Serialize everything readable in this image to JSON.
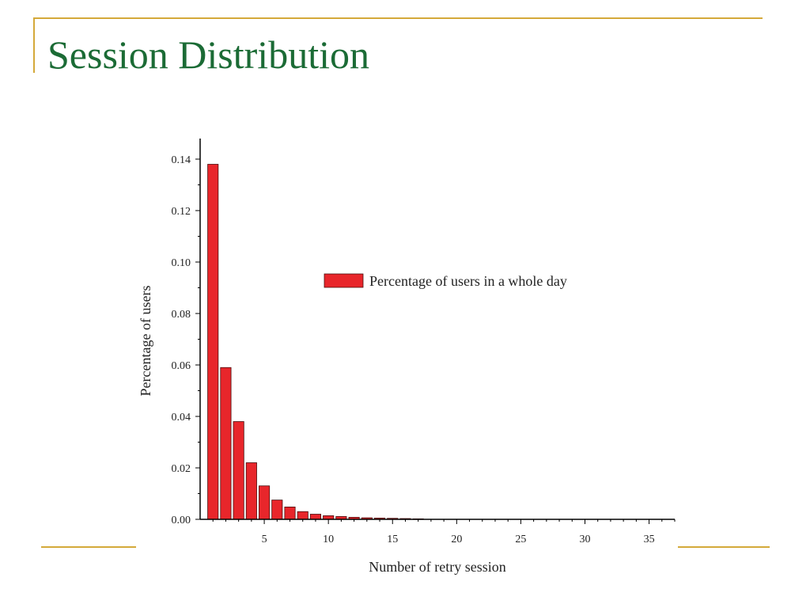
{
  "slide": {
    "title": "Session Distribution"
  },
  "colors": {
    "accent_line": "#d4a93a",
    "title": "#1b6b35",
    "bar_fill": "#e8262b",
    "bar_stroke": "#4a0d0d"
  },
  "chart_data": {
    "type": "bar",
    "x": [
      1,
      2,
      3,
      4,
      5,
      6,
      7,
      8,
      9,
      10,
      11,
      12,
      13,
      14,
      15,
      16,
      17
    ],
    "series": [
      {
        "name": "Percentage of users in a whole day",
        "values": [
          0.138,
          0.059,
          0.038,
          0.022,
          0.013,
          0.0075,
          0.0048,
          0.003,
          0.002,
          0.0014,
          0.0011,
          0.0008,
          0.0006,
          0.0005,
          0.0004,
          0.0003,
          0.0002
        ]
      }
    ],
    "xlabel": "Number of retry session",
    "ylabel": "Percentage of users",
    "xlim": [
      0,
      37
    ],
    "ylim": [
      0,
      0.148
    ],
    "xticks": [
      5,
      10,
      15,
      20,
      25,
      30,
      35
    ],
    "xtick_labels": [
      "5",
      "10",
      "15",
      "20",
      "25",
      "30",
      "35"
    ],
    "yticks": [
      0,
      0.02,
      0.04,
      0.06,
      0.08,
      0.1,
      0.12,
      0.14
    ],
    "ytick_labels": [
      "0.00",
      "0.02",
      "0.04",
      "0.06",
      "0.08",
      "0.10",
      "0.12",
      "0.14"
    ],
    "grid": false,
    "legend_position": "upper-right"
  }
}
